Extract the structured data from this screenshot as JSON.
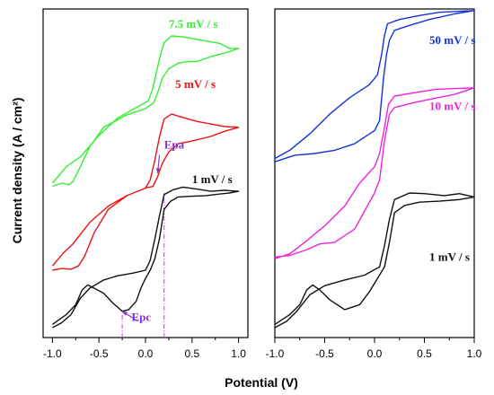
{
  "chart_data": {
    "type": "line",
    "xlabel": "Potential (V)",
    "ylabel": "Current density (A / cm²)",
    "panels": [
      {
        "xlim": [
          -1.1,
          1.1
        ],
        "ylim": [
          0,
          1
        ],
        "xticks": [
          "-1.0",
          "-0.5",
          "0.0",
          "0.5",
          "1.0"
        ],
        "xtick_values": [
          -1.0,
          -0.5,
          0.0,
          0.5,
          1.0
        ],
        "series": [
          {
            "name": "7.5 mV / s",
            "color": "#33ee33",
            "label_at": [
              0.25,
              0.943
            ],
            "points": [
              [
                -1.0,
                0.47
              ],
              [
                -0.85,
                0.52
              ],
              [
                -0.7,
                0.55
              ],
              [
                -0.5,
                0.615
              ],
              [
                -0.3,
                0.668
              ],
              [
                -0.1,
                0.7
              ],
              [
                0.03,
                0.72
              ],
              [
                0.08,
                0.76
              ],
              [
                0.12,
                0.81
              ],
              [
                0.16,
                0.86
              ],
              [
                0.2,
                0.898
              ],
              [
                0.28,
                0.918
              ],
              [
                0.4,
                0.915
              ],
              [
                0.6,
                0.905
              ],
              [
                0.8,
                0.895
              ],
              [
                0.9,
                0.88
              ],
              [
                1.0,
                0.88
              ],
              [
                0.9,
                0.87
              ],
              [
                0.7,
                0.855
              ],
              [
                0.55,
                0.84
              ],
              [
                0.45,
                0.84
              ],
              [
                0.35,
                0.835
              ],
              [
                0.25,
                0.818
              ],
              [
                0.18,
                0.79
              ],
              [
                0.13,
                0.745
              ],
              [
                0.09,
                0.715
              ],
              [
                0.0,
                0.697
              ],
              [
                -0.2,
                0.678
              ],
              [
                -0.45,
                0.64
              ],
              [
                -0.6,
                0.58
              ],
              [
                -0.7,
                0.52
              ],
              [
                -0.78,
                0.475
              ],
              [
                -0.82,
                0.465
              ],
              [
                -0.9,
                0.47
              ],
              [
                -1.0,
                0.46
              ]
            ]
          },
          {
            "name": "5 mV / s",
            "color": "#ee1111",
            "label_at": [
              0.32,
              0.759
            ],
            "points": [
              [
                -1.0,
                0.218
              ],
              [
                -0.88,
                0.258
              ],
              [
                -0.78,
                0.285
              ],
              [
                -0.6,
                0.35
              ],
              [
                -0.4,
                0.4
              ],
              [
                -0.2,
                0.432
              ],
              [
                0.0,
                0.455
              ],
              [
                0.05,
                0.48
              ],
              [
                0.1,
                0.54
              ],
              [
                0.15,
                0.61
              ],
              [
                0.2,
                0.665
              ],
              [
                0.28,
                0.68
              ],
              [
                0.4,
                0.67
              ],
              [
                0.55,
                0.658
              ],
              [
                0.7,
                0.65
              ],
              [
                0.85,
                0.642
              ],
              [
                1.0,
                0.64
              ],
              [
                0.85,
                0.628
              ],
              [
                0.7,
                0.612
              ],
              [
                0.5,
                0.598
              ],
              [
                0.35,
                0.59
              ],
              [
                0.25,
                0.565
              ],
              [
                0.18,
                0.53
              ],
              [
                0.13,
                0.49
              ],
              [
                0.08,
                0.46
              ],
              [
                0.0,
                0.455
              ],
              [
                -0.2,
                0.432
              ],
              [
                -0.4,
                0.39
              ],
              [
                -0.55,
                0.32
              ],
              [
                -0.65,
                0.25
              ],
              [
                -0.72,
                0.218
              ],
              [
                -0.8,
                0.208
              ],
              [
                -0.9,
                0.21
              ],
              [
                -1.0,
                0.205
              ]
            ]
          },
          {
            "name": "1 mV / s",
            "color": "#111111",
            "label_at": [
              0.5,
              0.47
            ],
            "points": [
              [
                -1.0,
                0.03
              ],
              [
                -0.9,
                0.045
              ],
              [
                -0.8,
                0.07
              ],
              [
                -0.7,
                0.12
              ],
              [
                -0.6,
                0.15
              ],
              [
                -0.45,
                0.175
              ],
              [
                -0.3,
                0.188
              ],
              [
                -0.15,
                0.195
              ],
              [
                0.0,
                0.205
              ],
              [
                0.05,
                0.235
              ],
              [
                0.1,
                0.3
              ],
              [
                0.15,
                0.37
              ],
              [
                0.2,
                0.435
              ],
              [
                0.3,
                0.45
              ],
              [
                0.4,
                0.458
              ],
              [
                0.55,
                0.452
              ],
              [
                0.7,
                0.445
              ],
              [
                0.85,
                0.448
              ],
              [
                1.0,
                0.445
              ],
              [
                0.9,
                0.44
              ],
              [
                0.8,
                0.437
              ],
              [
                0.65,
                0.432
              ],
              [
                0.5,
                0.43
              ],
              [
                0.35,
                0.428
              ],
              [
                0.27,
                0.415
              ],
              [
                0.2,
                0.39
              ],
              [
                0.15,
                0.3
              ],
              [
                0.1,
                0.24
              ],
              [
                0.05,
                0.205
              ],
              [
                0.0,
                0.18
              ],
              [
                -0.05,
                0.15
              ],
              [
                -0.1,
                0.11
              ],
              [
                -0.18,
                0.085
              ],
              [
                -0.25,
                0.08
              ],
              [
                -0.35,
                0.105
              ],
              [
                -0.45,
                0.135
              ],
              [
                -0.55,
                0.15
              ],
              [
                -0.62,
                0.16
              ],
              [
                -0.68,
                0.145
              ],
              [
                -0.75,
                0.1
              ],
              [
                -0.85,
                0.07
              ],
              [
                -0.95,
                0.05
              ],
              [
                -1.0,
                0.04
              ]
            ]
          }
        ],
        "annotations": [
          {
            "text": "Epa",
            "color": "#8833cc",
            "label_at": [
              0.2,
              0.575
            ],
            "arrow_from": [
              0.15,
              0.555
            ],
            "arrow_to": [
              0.13,
              0.5
            ]
          },
          {
            "text": "Epc",
            "color": "#8833cc",
            "label_at": [
              -0.15,
              0.05
            ],
            "arrow_from": [
              -0.08,
              0.05
            ],
            "arrow_to": [
              -0.25,
              0.08
            ]
          }
        ],
        "guides": [
          {
            "color": "#aa55dd",
            "x": -0.25,
            "y_from": 0.0,
            "y_to": 0.08
          },
          {
            "color": "#aa55dd",
            "x": 0.2,
            "y_from": 0.0,
            "y_to": 0.44
          }
        ]
      },
      {
        "xlim": [
          -1.0,
          1.0
        ],
        "ylim": [
          0,
          1
        ],
        "xticks": [
          "-1.0",
          "-0.5",
          "0.0",
          "0.5",
          "1.0"
        ],
        "xtick_values": [
          -1.0,
          -0.5,
          0.0,
          0.5,
          1.0
        ],
        "series": [
          {
            "name": "50 mV / s",
            "color": "#1133dd",
            "label_at": [
              0.55,
              0.893
            ],
            "points": [
              [
                -1.0,
                0.545
              ],
              [
                -0.85,
                0.57
              ],
              [
                -0.65,
                0.62
              ],
              [
                -0.45,
                0.68
              ],
              [
                -0.25,
                0.73
              ],
              [
                -0.05,
                0.77
              ],
              [
                0.03,
                0.8
              ],
              [
                0.07,
                0.86
              ],
              [
                0.1,
                0.92
              ],
              [
                0.13,
                0.955
              ],
              [
                0.25,
                0.968
              ],
              [
                0.45,
                0.98
              ],
              [
                0.65,
                0.99
              ],
              [
                0.85,
                0.993
              ],
              [
                1.0,
                0.995
              ],
              [
                0.8,
                0.985
              ],
              [
                0.55,
                0.968
              ],
              [
                0.35,
                0.95
              ],
              [
                0.2,
                0.935
              ],
              [
                0.15,
                0.905
              ],
              [
                0.12,
                0.86
              ],
              [
                0.09,
                0.79
              ],
              [
                0.05,
                0.66
              ],
              [
                0.0,
                0.63
              ],
              [
                -0.2,
                0.59
              ],
              [
                -0.4,
                0.57
              ],
              [
                -0.6,
                0.56
              ],
              [
                -0.8,
                0.555
              ],
              [
                -1.0,
                0.535
              ]
            ]
          },
          {
            "name": "10 mV / s",
            "color": "#ee22dd",
            "label_at": [
              0.55,
              0.692
            ],
            "points": [
              [
                -1.0,
                0.24
              ],
              [
                -0.85,
                0.255
              ],
              [
                -0.7,
                0.29
              ],
              [
                -0.5,
                0.34
              ],
              [
                -0.3,
                0.4
              ],
              [
                -0.15,
                0.47
              ],
              [
                0.0,
                0.52
              ],
              [
                0.05,
                0.56
              ],
              [
                0.1,
                0.64
              ],
              [
                0.14,
                0.71
              ],
              [
                0.2,
                0.735
              ],
              [
                0.4,
                0.745
              ],
              [
                0.6,
                0.755
              ],
              [
                0.8,
                0.758
              ],
              [
                1.0,
                0.76
              ],
              [
                0.8,
                0.74
              ],
              [
                0.55,
                0.725
              ],
              [
                0.35,
                0.712
              ],
              [
                0.2,
                0.7
              ],
              [
                0.15,
                0.68
              ],
              [
                0.1,
                0.6
              ],
              [
                0.05,
                0.48
              ],
              [
                0.0,
                0.44
              ],
              [
                -0.2,
                0.33
              ],
              [
                -0.4,
                0.29
              ],
              [
                -0.55,
                0.285
              ],
              [
                -0.7,
                0.265
              ],
              [
                -0.85,
                0.25
              ],
              [
                -1.0,
                0.245
              ]
            ]
          },
          {
            "name": "1 mV / s",
            "color": "#111111",
            "label_at": [
              0.55,
              0.233
            ],
            "points": [
              [
                -1.0,
                0.03
              ],
              [
                -0.88,
                0.05
              ],
              [
                -0.78,
                0.08
              ],
              [
                -0.65,
                0.13
              ],
              [
                -0.5,
                0.158
              ],
              [
                -0.3,
                0.175
              ],
              [
                -0.1,
                0.19
              ],
              [
                0.05,
                0.215
              ],
              [
                0.1,
                0.28
              ],
              [
                0.15,
                0.36
              ],
              [
                0.2,
                0.42
              ],
              [
                0.35,
                0.44
              ],
              [
                0.5,
                0.438
              ],
              [
                0.7,
                0.432
              ],
              [
                0.85,
                0.438
              ],
              [
                1.0,
                0.428
              ],
              [
                0.85,
                0.42
              ],
              [
                0.65,
                0.415
              ],
              [
                0.45,
                0.412
              ],
              [
                0.3,
                0.402
              ],
              [
                0.2,
                0.38
              ],
              [
                0.15,
                0.29
              ],
              [
                0.1,
                0.215
              ],
              [
                0.03,
                0.18
              ],
              [
                -0.05,
                0.14
              ],
              [
                -0.15,
                0.1
              ],
              [
                -0.3,
                0.085
              ],
              [
                -0.45,
                0.115
              ],
              [
                -0.55,
                0.145
              ],
              [
                -0.62,
                0.16
              ],
              [
                -0.68,
                0.145
              ],
              [
                -0.75,
                0.1
              ],
              [
                -0.85,
                0.07
              ],
              [
                -0.95,
                0.05
              ],
              [
                -1.0,
                0.04
              ]
            ]
          }
        ]
      }
    ]
  }
}
